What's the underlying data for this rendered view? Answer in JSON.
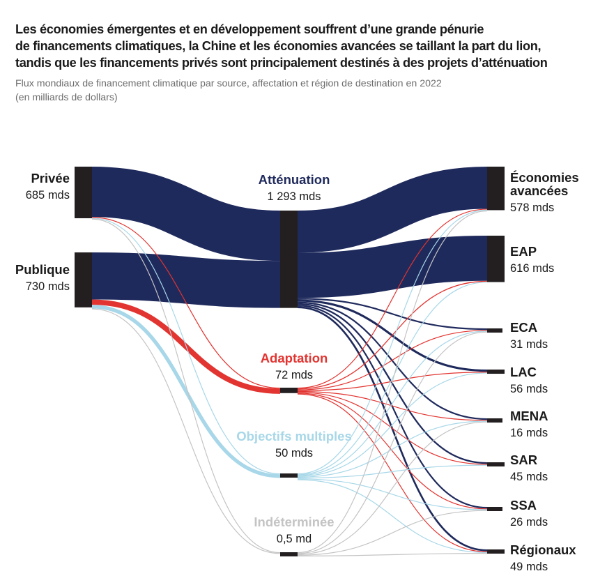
{
  "title_lines": [
    "Les économies émergentes et en développement souffrent d’une grande pénurie",
    "de financements climatiques, la Chine et les économies avancées se taillant la part du lion,",
    "tandis que les financements privés sont principalement destinés à des projets d’atténuation"
  ],
  "subtitle_lines": [
    "Flux mondiaux de financement climatique par source, affectation et région de destination en 2022",
    "(en milliards de dollars)"
  ],
  "colors": {
    "attenuation": "#1f2a5c",
    "adaptation": "#e23430",
    "multiples": "#a7d7e8",
    "indeterminee": "#c4c4c4",
    "node": "#231f20",
    "text": "#1a1a1a"
  },
  "chart_data": {
    "type": "sankey",
    "unit": "milliards de dollars",
    "sources": [
      {
        "id": "privee",
        "name": "Privée",
        "value_label": "685 mds",
        "value": 685
      },
      {
        "id": "publique",
        "name": "Publique",
        "value_label": "730 mds",
        "value": 730
      }
    ],
    "uses": [
      {
        "id": "attenuation",
        "name": "Atténuation",
        "value_label": "1 293 mds",
        "value": 1293
      },
      {
        "id": "adaptation",
        "name": "Adaptation",
        "value_label": "72 mds",
        "value": 72
      },
      {
        "id": "multiples",
        "name": "Objectifs multiples",
        "value_label": "50 mds",
        "value": 50
      },
      {
        "id": "indeterminee",
        "name": "Indéterminée",
        "value_label": "0,5 md",
        "value": 0.5
      }
    ],
    "regions": [
      {
        "id": "avancees",
        "name_lines": [
          "Économies",
          "avancées"
        ],
        "value_label": "578 mds",
        "value": 578
      },
      {
        "id": "eap",
        "name_lines": [
          "EAP"
        ],
        "value_label": "616 mds",
        "value": 616
      },
      {
        "id": "eca",
        "name_lines": [
          "ECA"
        ],
        "value_label": "31 mds",
        "value": 31
      },
      {
        "id": "lac",
        "name_lines": [
          "LAC"
        ],
        "value_label": "56 mds",
        "value": 56
      },
      {
        "id": "mena",
        "name_lines": [
          "MENA"
        ],
        "value_label": "16 mds",
        "value": 16
      },
      {
        "id": "sar",
        "name_lines": [
          "SAR"
        ],
        "value_label": "45 mds",
        "value": 45
      },
      {
        "id": "ssa",
        "name_lines": [
          "SSA"
        ],
        "value_label": "26 mds",
        "value": 26
      },
      {
        "id": "regionaux",
        "name_lines": [
          "Régionaux"
        ],
        "value_label": "49 mds",
        "value": 49
      }
    ],
    "flows_source_to_use": [
      {
        "from": "privee",
        "to": "attenuation",
        "value": 668
      },
      {
        "from": "privee",
        "to": "adaptation",
        "value": 1
      },
      {
        "from": "privee",
        "to": "multiples",
        "value": 0.8
      },
      {
        "from": "privee",
        "to": "indeterminee",
        "value": 0.3
      },
      {
        "from": "publique",
        "to": "attenuation",
        "value": 625
      },
      {
        "from": "publique",
        "to": "adaptation",
        "value": 71
      },
      {
        "from": "publique",
        "to": "multiples",
        "value": 49
      },
      {
        "from": "publique",
        "to": "indeterminee",
        "value": 0.2
      }
    ],
    "flows_use_to_region": [
      {
        "from": "attenuation",
        "to": "avancees",
        "value": 560
      },
      {
        "from": "attenuation",
        "to": "eap",
        "value": 600
      },
      {
        "from": "attenuation",
        "to": "eca",
        "value": 25
      },
      {
        "from": "attenuation",
        "to": "lac",
        "value": 45
      },
      {
        "from": "attenuation",
        "to": "mena",
        "value": 10
      },
      {
        "from": "attenuation",
        "to": "sar",
        "value": 33
      },
      {
        "from": "attenuation",
        "to": "ssa",
        "value": 12
      },
      {
        "from": "attenuation",
        "to": "regionaux",
        "value": 38
      },
      {
        "from": "adaptation",
        "to": "avancees",
        "value": 8
      },
      {
        "from": "adaptation",
        "to": "eap",
        "value": 12
      },
      {
        "from": "adaptation",
        "to": "eca",
        "value": 3
      },
      {
        "from": "adaptation",
        "to": "lac",
        "value": 6
      },
      {
        "from": "adaptation",
        "to": "mena",
        "value": 4
      },
      {
        "from": "adaptation",
        "to": "sar",
        "value": 9
      },
      {
        "from": "adaptation",
        "to": "ssa",
        "value": 10
      },
      {
        "from": "adaptation",
        "to": "regionaux",
        "value": 5
      },
      {
        "from": "multiples",
        "to": "avancees",
        "value": 10
      },
      {
        "from": "multiples",
        "to": "eap",
        "value": 4
      },
      {
        "from": "multiples",
        "to": "eca",
        "value": 3
      },
      {
        "from": "multiples",
        "to": "lac",
        "value": 5
      },
      {
        "from": "multiples",
        "to": "mena",
        "value": 2
      },
      {
        "from": "multiples",
        "to": "sar",
        "value": 3
      },
      {
        "from": "multiples",
        "to": "ssa",
        "value": 4
      },
      {
        "from": "multiples",
        "to": "regionaux",
        "value": 6
      },
      {
        "from": "indeterminee",
        "to": "avancees",
        "value": 0.1
      },
      {
        "from": "indeterminee",
        "to": "eca",
        "value": 0.1
      },
      {
        "from": "indeterminee",
        "to": "mena",
        "value": 0.1
      },
      {
        "from": "indeterminee",
        "to": "ssa",
        "value": 0.1
      },
      {
        "from": "indeterminee",
        "to": "regionaux",
        "value": 0.1
      }
    ]
  }
}
